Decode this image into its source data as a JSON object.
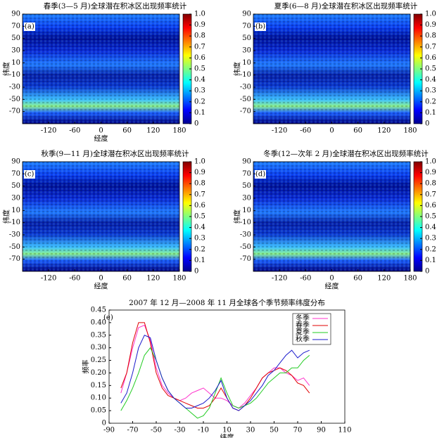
{
  "chart_data": [
    {
      "type": "heatmap",
      "title": "春季(3—5 月)全球潜在积冰区出现频率统计",
      "panel_label": "(a)",
      "xlabel": "经度",
      "ylabel": "纬度",
      "xlim": [
        -180,
        180
      ],
      "xticks": [
        -120,
        -60,
        0,
        60,
        120,
        180
      ],
      "ylim": [
        -90,
        90
      ],
      "yticks": [
        -70,
        -50,
        -30,
        -10,
        10,
        30,
        50,
        70,
        90
      ],
      "clim": [
        0,
        1
      ],
      "cticks": [
        0,
        0.1,
        0.2,
        0.3,
        0.4,
        0.5,
        0.6,
        0.7,
        0.8,
        0.9,
        {
          "value": 1,
          "label": "1.0"
        }
      ]
    },
    {
      "type": "heatmap",
      "title": "夏季(6—8 月)全球潜在积冰区出现频率统计",
      "panel_label": "(b)",
      "ylabel": "纬度",
      "xlim": [
        -180,
        180
      ],
      "xticks": [
        -120,
        -60,
        0,
        60,
        120,
        180
      ],
      "ylim": [
        -90,
        90
      ],
      "yticks": [
        -70,
        -50,
        -30,
        -10,
        10,
        30,
        50,
        70,
        90
      ],
      "clim": [
        0,
        1
      ],
      "cticks": [
        0,
        0.1,
        0.2,
        0.3,
        0.4,
        0.5,
        0.6,
        0.7,
        0.8,
        0.9,
        {
          "value": 1,
          "label": "1.0"
        }
      ]
    },
    {
      "type": "heatmap",
      "title": "秋季(9—11 月)全球潜在积冰区出现频率统计",
      "panel_label": "(c)",
      "xlabel": "经度",
      "ylabel": "纬度",
      "xlim": [
        -180,
        180
      ],
      "xticks": [
        -120,
        -60,
        0,
        60,
        120,
        180
      ],
      "ylim": [
        -90,
        90
      ],
      "yticks": [
        -70,
        -50,
        -30,
        -10,
        10,
        30,
        50,
        70,
        90
      ],
      "clim": [
        0,
        1
      ],
      "cticks": [
        0,
        0.1,
        0.2,
        0.3,
        0.4,
        0.5,
        0.6,
        0.7,
        0.8,
        0.9,
        {
          "value": 1,
          "label": "1.0"
        }
      ]
    },
    {
      "type": "heatmap",
      "title": "冬季(12—次年 2 月)全球潜在积冰区出现频率统计",
      "panel_label": "(d)",
      "xlabel": "经度",
      "ylabel": "纬度",
      "xlim": [
        -180,
        180
      ],
      "xticks": [
        -120,
        -60,
        0,
        60,
        120,
        180
      ],
      "ylim": [
        -90,
        90
      ],
      "yticks": [
        -70,
        -50,
        -30,
        -10,
        10,
        30,
        50,
        70,
        90
      ],
      "clim": [
        0,
        1
      ],
      "cticks": [
        0,
        0.1,
        0.2,
        0.3,
        0.4,
        0.5,
        0.6,
        0.7,
        0.8,
        0.9,
        {
          "value": 1,
          "label": "1.0"
        }
      ]
    },
    {
      "type": "line",
      "title": "2007 年 12 月—2008 年 11 月全球各个季节频率纬度分布",
      "panel_label": "(e)",
      "xlabel": "纬度",
      "ylabel": "频率",
      "xlim": [
        -90,
        110
      ],
      "xticks": [
        -90,
        -70,
        -50,
        -30,
        -10,
        10,
        30,
        50,
        70,
        90,
        110
      ],
      "ylim": [
        0,
        0.45
      ],
      "yticks": [
        0,
        0.05,
        {
          "value": 0.1,
          "label": "0.10"
        },
        0.15,
        {
          "value": 0.2,
          "label": "0.20"
        },
        0.25,
        {
          "value": 0.3,
          "label": "0.30"
        },
        0.35,
        {
          "value": 0.4,
          "label": "0.40"
        },
        0.45
      ],
      "legend": "upper right",
      "x": [
        -80,
        -75,
        -70,
        -65,
        -60,
        -55,
        -50,
        -45,
        -40,
        -35,
        -30,
        -25,
        -20,
        -15,
        -10,
        -5,
        0,
        5,
        10,
        15,
        20,
        25,
        30,
        35,
        40,
        45,
        50,
        55,
        60,
        65,
        70,
        75,
        80
      ],
      "series": [
        {
          "name": "冬季",
          "color": "#ff33cc",
          "values": [
            0.12,
            0.2,
            0.3,
            0.38,
            0.39,
            0.33,
            0.22,
            0.15,
            0.12,
            0.1,
            0.09,
            0.1,
            0.12,
            0.13,
            0.14,
            0.12,
            0.1,
            0.1,
            0.09,
            0.07,
            0.06,
            0.08,
            0.11,
            0.14,
            0.18,
            0.2,
            0.22,
            0.22,
            0.2,
            0.19,
            0.17,
            0.18,
            0.15
          ]
        },
        {
          "name": "春季",
          "color": "#e00000",
          "values": [
            0.14,
            0.2,
            0.32,
            0.4,
            0.4,
            0.32,
            0.2,
            0.14,
            0.11,
            0.1,
            0.09,
            0.08,
            0.07,
            0.06,
            0.06,
            0.07,
            0.1,
            0.14,
            0.1,
            0.06,
            0.05,
            0.07,
            0.1,
            0.14,
            0.18,
            0.2,
            0.21,
            0.22,
            0.21,
            0.19,
            0.16,
            0.15,
            0.12
          ]
        },
        {
          "name": "夏季",
          "color": "#22cc22",
          "values": [
            0.05,
            0.09,
            0.14,
            0.2,
            0.27,
            0.3,
            0.25,
            0.18,
            0.13,
            0.1,
            0.08,
            0.06,
            0.04,
            0.02,
            0.03,
            0.06,
            0.12,
            0.18,
            0.12,
            0.07,
            0.06,
            0.07,
            0.08,
            0.1,
            0.13,
            0.16,
            0.18,
            0.2,
            0.2,
            0.22,
            0.22,
            0.25,
            0.27
          ]
        },
        {
          "name": "秋季",
          "color": "#1a1acc",
          "values": [
            0.08,
            0.12,
            0.2,
            0.3,
            0.35,
            0.34,
            0.25,
            0.18,
            0.13,
            0.1,
            0.08,
            0.06,
            0.06,
            0.07,
            0.08,
            0.1,
            0.13,
            0.17,
            0.1,
            0.06,
            0.05,
            0.07,
            0.09,
            0.12,
            0.15,
            0.19,
            0.21,
            0.24,
            0.27,
            0.29,
            0.26,
            0.28,
            0.29
          ]
        }
      ]
    }
  ]
}
